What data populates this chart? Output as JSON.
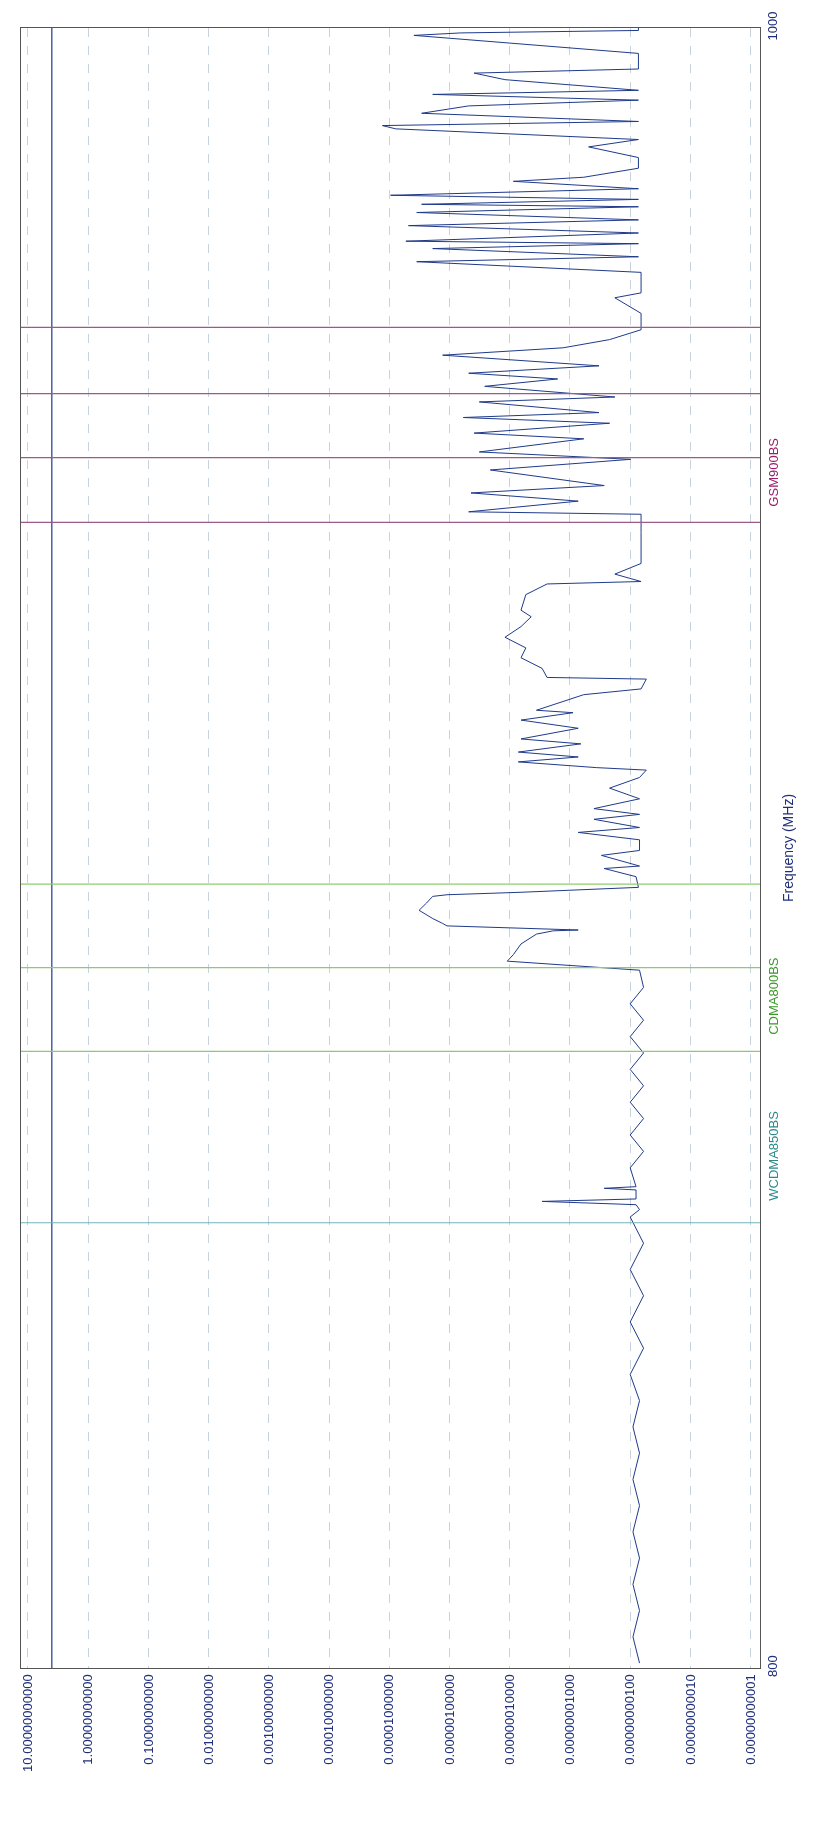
{
  "chart_data": {
    "type": "line",
    "ylabel": "Frequency (MHz)",
    "series": [
      {
        "color": "#1f3a8a",
        "values": [
          800.6,
          803.8,
          807,
          810.2,
          813.4,
          816.6,
          819.8,
          823,
          826.2,
          829.4,
          832.6,
          835.8,
          839,
          842.2,
          845.4,
          848.6,
          851.8,
          855,
          855.9,
          856.5,
          856.9,
          857.2,
          858.3,
          858.5,
          858.7,
          861,
          863,
          865,
          867,
          869,
          871,
          873,
          875,
          877,
          879,
          881,
          883,
          885.1,
          886.2,
          887,
          888.3,
          889.5,
          889.9,
          890.0,
          890.5,
          890.8,
          891.4,
          892.4,
          893.3,
          894.1,
          894.3,
          894.6,
          895.2,
          896.5,
          897.5,
          897.8,
          899.1,
          899.7,
          901.0,
          901.9,
          902.5,
          903.5,
          904.1,
          904.8,
          906,
          907.3,
          908.6,
          909.5,
          909.8,
          910.5,
          911.1,
          911.7,
          912.7,
          913.3,
          914.6,
          915.6,
          916.5,
          916.8,
          918.7,
          919.4,
          920.6,
          920.8,
          921.9,
          923.2,
          924.4,
          925.7,
          927.0,
          928.2,
          929.0,
          930.9,
          932.2,
          932.5,
          933.4,
          934.7,
          938.5,
          940.7,
          941.0,
          942.3,
          943.3,
          944.2,
          946.1,
          947.4,
          948.3,
          949.9,
          950.6,
          951.8,
          952.5,
          953.1,
          954.4,
          955.0,
          956.3,
          957.2,
          957.9,
          958.8,
          960.1,
          961.0,
          962.0,
          963.2,
          965.2,
          967.1,
          967.7,
          970.2,
          971.5,
          972.1,
          973.1,
          973.7,
          974.0,
          975.0,
          975.9,
          976.6,
          977.5,
          978.2,
          978.5,
          979.1,
          979.6,
          980.4,
          981.3,
          981.8,
          982.9,
          984.2,
          985.5,
          986.4,
          987.7,
          988.1,
          988.6,
          989.6,
          990.5,
          991.2,
          991.9,
          992.4,
          993.7,
          994.5,
          995.0,
          996.9,
          999.1,
          999.4,
          999.7,
          1000.0
        ],
        "x": [
          7e-10,
          9e-10,
          7e-10,
          9e-10,
          7e-10,
          9e-10,
          7e-10,
          9e-10,
          7e-10,
          9e-10,
          7e-10,
          1e-09,
          6e-10,
          1e-09,
          6e-10,
          1e-09,
          6e-10,
          1e-09,
          7e-10,
          8e-10,
          2.9e-08,
          8e-10,
          8e-10,
          2.7e-09,
          8e-10,
          1e-09,
          6e-10,
          1e-09,
          6e-10,
          1e-09,
          6e-10,
          1e-09,
          6e-10,
          1e-09,
          6e-10,
          1e-09,
          6e-10,
          7e-10,
          1.1e-07,
          8.7e-08,
          6.5e-08,
          3.6e-08,
          1.9e-08,
          7.3e-09,
          1.1e-06,
          1.3e-06,
          1.9e-06,
          3.2e-06,
          2.4e-06,
          1.9e-06,
          1.1e-06,
          6.5e-08,
          7.3e-10,
          8e-10,
          2.7e-09,
          7e-10,
          3e-09,
          7e-10,
          7e-10,
          7.3e-09,
          7e-10,
          4e-09,
          7e-10,
          4e-09,
          7e-10,
          2.2e-09,
          7e-10,
          5.4e-10,
          3.6e-09,
          7.2e-08,
          7.3e-09,
          7.2e-08,
          6.6e-09,
          6.5e-08,
          7.3e-09,
          6.5e-08,
          8.9e-09,
          3.6e-08,
          5.9e-09,
          6.6e-10,
          5.4e-10,
          2.4e-08,
          2.9e-08,
          6.5e-08,
          5.4e-08,
          1.2e-07,
          6.5e-08,
          4.4e-08,
          6.5e-08,
          5.4e-08,
          2.4e-08,
          6.6e-10,
          1.8e-09,
          6.6e-10,
          6.6e-10,
          6.6e-10,
          4.8e-07,
          7.3e-09,
          4.4e-07,
          2.7e-09,
          2.1e-07,
          9.8e-10,
          3.2e-07,
          5.9e-09,
          3.9e-07,
          2.2e-09,
          5.9e-07,
          3.3e-09,
          3.2e-07,
          1.8e-09,
          2.6e-07,
          1.6e-08,
          4.8e-07,
          3.3e-09,
          1.3e-06,
          1.3e-08,
          2.2e-09,
          6.6e-10,
          6.6e-10,
          1.8e-09,
          6.6e-10,
          6.6e-10,
          3.5e-06,
          7.3e-10,
          1.9e-06,
          7.3e-10,
          5.3e-06,
          7.3e-10,
          4.8e-06,
          7.3e-10,
          3.5e-06,
          7.3e-10,
          2.9e-06,
          7.3e-10,
          9.5e-06,
          7.3e-10,
          8.7e-08,
          5.9e-09,
          7.3e-10,
          7.3e-10,
          4.9e-09,
          7.3e-10,
          7.8e-06,
          1.3e-05,
          7.3e-10,
          2.9e-06,
          4.8e-07,
          7.3e-10,
          1.9e-06,
          7.3e-10,
          1.2e-07,
          3.9e-07,
          7.3e-10,
          7.3e-10,
          3.9e-06,
          6.5e-07,
          7.3e-10,
          7.3e-10
        ]
      }
    ],
    "ylim": [
      800,
      1000
    ],
    "yticks": [
      800,
      1000
    ],
    "xlim": [
      13,
      7e-12
    ],
    "xticks": [
      {
        "value": 10,
        "label": "10.00000000000"
      },
      {
        "value": 1,
        "label": "1.00000000000"
      },
      {
        "value": 0.1,
        "label": "0.10000000000"
      },
      {
        "value": 0.01,
        "label": "0.01000000000"
      },
      {
        "value": 0.001,
        "label": "0.00100000000"
      },
      {
        "value": 0.0001,
        "label": "0.00010000000"
      },
      {
        "value": 1e-05,
        "label": "0.00001000000"
      },
      {
        "value": 1e-06,
        "label": "0.00000100000"
      },
      {
        "value": 1e-07,
        "label": "0.00000010000"
      },
      {
        "value": 1e-08,
        "label": "0.00000001000"
      },
      {
        "value": 1e-09,
        "label": "0.00000000100"
      },
      {
        "value": 1e-10,
        "label": "0.00000000010"
      },
      {
        "value": 1e-11,
        "label": "0.00000000001"
      }
    ],
    "log": "x",
    "grid": true,
    "ref_lines": [
      {
        "axis": "x",
        "value": 4,
        "color": "#1f3a8a"
      },
      {
        "axis": "y",
        "value": 854.3,
        "color": "#6fb3bd"
      },
      {
        "axis": "y",
        "value": 875.2,
        "color": "#8ccc6e"
      },
      {
        "axis": "y",
        "value": 885.4,
        "color": "#8ccc6e"
      },
      {
        "axis": "y",
        "value": 895.6,
        "color": "#8ccc6e"
      },
      {
        "axis": "y",
        "value": 939.7,
        "color": "#9c5a88"
      },
      {
        "axis": "y",
        "value": 947.6,
        "color": "#9c5a88"
      },
      {
        "axis": "y",
        "value": 955.4,
        "color": "#9c5a88"
      },
      {
        "axis": "y",
        "value": 963.5,
        "color": "#9c5a88"
      }
    ],
    "annotations": [
      "WCDMA850BS",
      "CDMA800BS",
      "GSM900BS"
    ]
  }
}
